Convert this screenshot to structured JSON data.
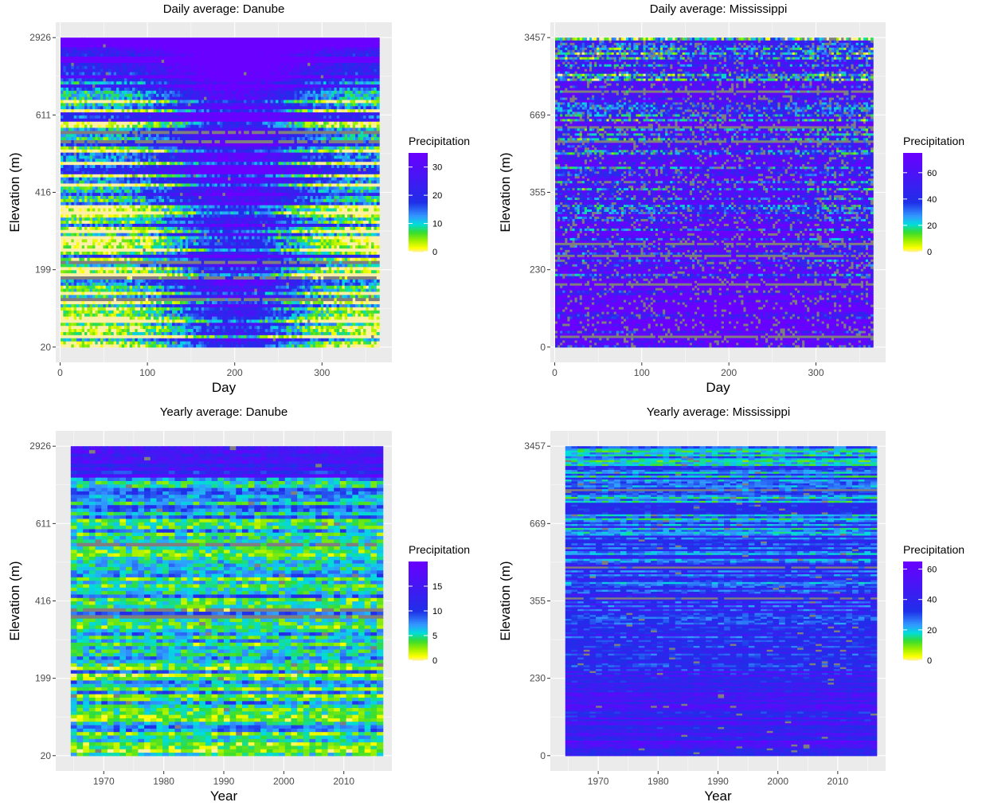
{
  "colors": {
    "panel_background": "#ebebeb",
    "gridline": "#ffffff",
    "missing": "#7f7f7f",
    "palette": [
      "#fff0a8",
      "#ffff00",
      "#99ee00",
      "#33dd33",
      "#00dddd",
      "#3399ff",
      "#1f2fe8",
      "#6a00ff"
    ],
    "palette_stops": [
      0,
      0.04,
      0.12,
      0.2,
      0.28,
      0.36,
      0.5,
      1.0
    ]
  },
  "chart_data": [
    {
      "type": "heatmap",
      "title": "Daily average: Danube",
      "xlabel": "Day",
      "ylabel": "Elevation (m)",
      "x_range": [
        1,
        365
      ],
      "xlim": [
        -5,
        380
      ],
      "x_ticks": [
        0,
        100,
        200,
        300
      ],
      "y_ticks": [
        "20",
        "199",
        "416",
        "611",
        "2926"
      ],
      "legend": {
        "title": "Precipitation",
        "min": 0,
        "max": 35,
        "ticks": [
          0,
          10,
          20,
          30
        ],
        "placement": "right"
      },
      "grid": true,
      "layout": {
        "rows": 100,
        "cols": 120,
        "seed": 11,
        "base": 0.2,
        "x_peak": 0.6,
        "y_gain": 0.4,
        "top_rows": 0.13,
        "top_boost": 0.5,
        "noise": 0.75,
        "missing_rate": 0.005,
        "missing_bands": 0.06,
        "pixel_noise": 0.3
      }
    },
    {
      "type": "heatmap",
      "title": "Daily average: Mississippi",
      "xlabel": "Day",
      "ylabel": "Elevation (m)",
      "x_range": [
        1,
        365
      ],
      "xlim": [
        -5,
        380
      ],
      "x_ticks": [
        0,
        100,
        200,
        300
      ],
      "y_ticks": [
        "0",
        "230",
        "355",
        "669",
        "3457"
      ],
      "legend": {
        "title": "Precipitation",
        "min": 0,
        "max": 75,
        "ticks": [
          0,
          20,
          40,
          60
        ],
        "placement": "right"
      },
      "grid": true,
      "layout": {
        "rows": 130,
        "cols": 130,
        "seed": 23,
        "base": 0.7,
        "x_peak": 0.15,
        "y_gain": -0.45,
        "top_rows": 0.0,
        "top_boost": 0.0,
        "noise": 0.65,
        "missing_rate": 0.12,
        "missing_bands": 0.04,
        "pixel_noise": 0.55
      }
    },
    {
      "type": "heatmap",
      "title": "Yearly average: Danube",
      "xlabel": "Year",
      "ylabel": "Elevation (m)",
      "x_range": [
        1965,
        2016
      ],
      "xlim": [
        1962,
        2018
      ],
      "x_ticks": [
        1970,
        1980,
        1990,
        2000,
        2010
      ],
      "y_ticks": [
        "20",
        "199",
        "416",
        "611",
        "2926"
      ],
      "legend": {
        "title": "Precipitation",
        "min": 0,
        "max": 20,
        "ticks": [
          0,
          5,
          10,
          15
        ],
        "placement": "right"
      },
      "grid": true,
      "layout": {
        "rows": 90,
        "cols": 51,
        "seed": 37,
        "base": 0.3,
        "x_peak": 0.0,
        "y_gain": 0.12,
        "top_rows": 0.1,
        "top_boost": 0.35,
        "noise": 0.32,
        "missing_rate": 0.008,
        "missing_bands": 0.05,
        "pixel_noise": 0.25
      }
    },
    {
      "type": "heatmap",
      "title": "Yearly average: Mississippi",
      "xlabel": "Year",
      "ylabel": "Elevation (m)",
      "x_range": [
        1965,
        2016
      ],
      "xlim": [
        1962,
        2018
      ],
      "x_ticks": [
        1970,
        1980,
        1990,
        2000,
        2010
      ],
      "y_ticks": [
        "0",
        "230",
        "355",
        "669",
        "3457"
      ],
      "legend": {
        "title": "Precipitation",
        "min": 0,
        "max": 65,
        "ticks": [
          0,
          20,
          40,
          60
        ],
        "placement": "right"
      },
      "grid": true,
      "layout": {
        "rows": 160,
        "cols": 51,
        "seed": 53,
        "base": 0.55,
        "x_peak": 0.0,
        "y_gain": -0.4,
        "top_rows": 0.0,
        "top_boost": 0.0,
        "noise": 0.35,
        "missing_rate": 0.015,
        "missing_bands": 0.01,
        "pixel_noise": 0.2
      }
    }
  ]
}
